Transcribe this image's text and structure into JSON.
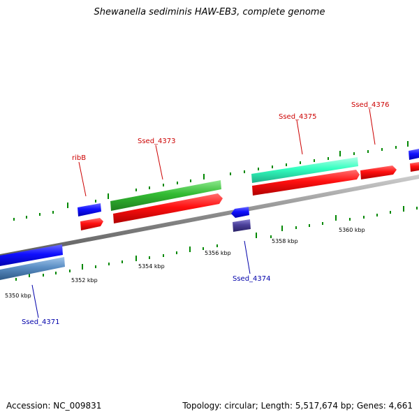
{
  "title": "Shewanella sediminis HAW-EB3, complete genome",
  "footer": {
    "accession": "Accession: NC_009831",
    "summary": "Topology: circular; Length: 5,517,674 bp; Genes: 4,661"
  },
  "colors": {
    "forward_label": "#cc0000",
    "reverse_label": "#0000aa",
    "axis": "#888888",
    "ticks": "#008800"
  },
  "scale_labels": [
    "5350 kbp",
    "5352 kbp",
    "5354 kbp",
    "5356 kbp",
    "5358 kbp",
    "5360 kbp"
  ],
  "gene_labels": {
    "ribB": "ribB",
    "sse4373": "Ssed_4373",
    "sse4375": "Ssed_4375",
    "sse4376": "Ssed_4376",
    "sse4374": "Ssed_4374",
    "sse4371": "Ssed_4371"
  }
}
